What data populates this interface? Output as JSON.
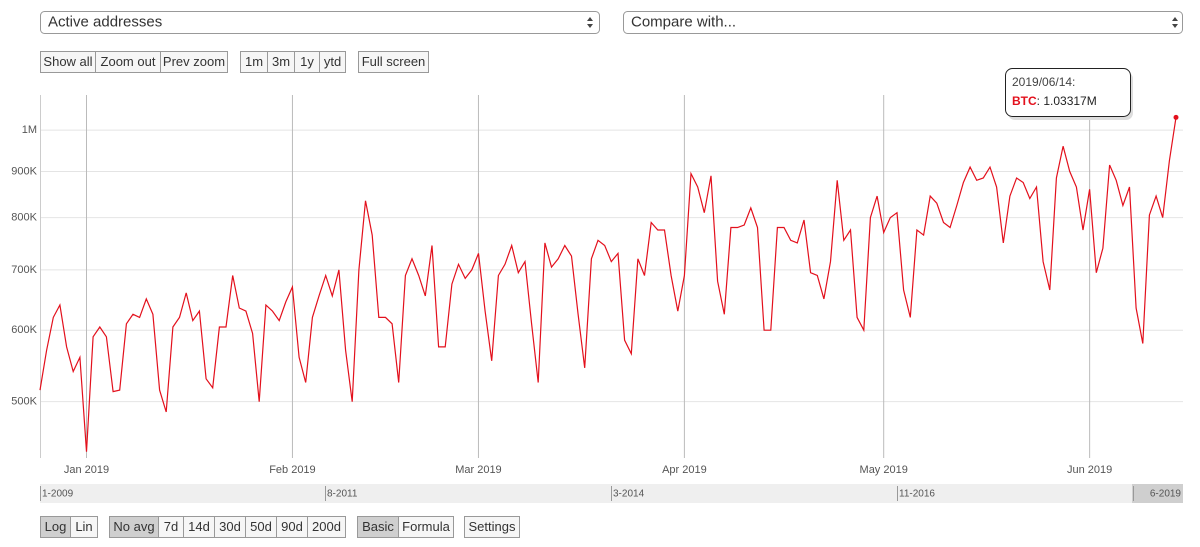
{
  "selects": [
    "Active addresses",
    "Compare with..."
  ],
  "zoom_buttons": [
    "Show all",
    "Zoom out",
    "Prev zoom"
  ],
  "range_buttons": [
    "1m",
    "3m",
    "1y",
    "ytd"
  ],
  "fullscreen_button": "Full screen",
  "scale_buttons": [
    "Log",
    "Lin"
  ],
  "scale_active": 0,
  "avg_buttons": [
    "No avg",
    "7d",
    "14d",
    "30d",
    "50d",
    "90d",
    "200d"
  ],
  "avg_active": 0,
  "mode_buttons": [
    "Basic",
    "Formula"
  ],
  "mode_active": 0,
  "settings_button": "Settings",
  "navigator": {
    "labels": [
      "1-2009",
      "8-2011",
      "3-2014",
      "11-2016",
      "6-2019"
    ]
  },
  "chart_data": {
    "type": "line",
    "log_scale": true,
    "grid": true,
    "categories": [
      null,
      null,
      null,
      null,
      null,
      null,
      null,
      "Jan 2019",
      null,
      null,
      null,
      null,
      null,
      null,
      null,
      null,
      null,
      null,
      null,
      null,
      null,
      null,
      null,
      null,
      null,
      null,
      null,
      null,
      null,
      null,
      null,
      null,
      null,
      null,
      null,
      null,
      null,
      null,
      "Feb 2019",
      null,
      null,
      null,
      null,
      null,
      null,
      null,
      null,
      null,
      null,
      null,
      null,
      null,
      null,
      null,
      null,
      null,
      null,
      null,
      null,
      null,
      null,
      null,
      null,
      null,
      null,
      null,
      "Mar 2019",
      null,
      null,
      null,
      null,
      null,
      null,
      null,
      null,
      null,
      null,
      null,
      null,
      null,
      null,
      null,
      null,
      null,
      null,
      null,
      null,
      null,
      null,
      null,
      null,
      null,
      null,
      null,
      null,
      null,
      null,
      "Apr 2019",
      null,
      null,
      null,
      null,
      null,
      null,
      null,
      null,
      null,
      null,
      null,
      null,
      null,
      null,
      null,
      null,
      null,
      null,
      null,
      null,
      null,
      null,
      null,
      null,
      null,
      null,
      null,
      null,
      null,
      "May 2019",
      null,
      null,
      null,
      null,
      null,
      null,
      null,
      null,
      null,
      null,
      null,
      null,
      null,
      null,
      null,
      null,
      null,
      null,
      null,
      null,
      null,
      null,
      null,
      null,
      null,
      null,
      null,
      null,
      null,
      null,
      "Jun 2019",
      null,
      null,
      null,
      null,
      null,
      null,
      null,
      null,
      null,
      null,
      null,
      null,
      null
    ],
    "series": [
      {
        "name": "BTC",
        "color": "#e3101c",
        "values": [
          515000,
          570000,
          620000,
          640000,
          575000,
          540000,
          560000,
          440000,
          590000,
          605000,
          590000,
          513000,
          515000,
          610000,
          625000,
          620000,
          650000,
          625000,
          515000,
          487000,
          605000,
          620000,
          660000,
          615000,
          630000,
          530000,
          518000,
          605000,
          605000,
          690000,
          635000,
          630000,
          595000,
          500000,
          640000,
          630000,
          615000,
          645000,
          670000,
          560000,
          525000,
          620000,
          655000,
          690000,
          655000,
          700000,
          570000,
          500000,
          700000,
          835000,
          765000,
          620000,
          620000,
          610000,
          525000,
          690000,
          720000,
          690000,
          655000,
          745000,
          575000,
          575000,
          675000,
          710000,
          685000,
          700000,
          730000,
          630000,
          555000,
          690000,
          710000,
          745000,
          695000,
          715000,
          610000,
          525000,
          750000,
          705000,
          720000,
          745000,
          725000,
          625000,
          545000,
          720000,
          755000,
          745000,
          715000,
          730000,
          585000,
          565000,
          720000,
          690000,
          790000,
          775000,
          775000,
          690000,
          630000,
          690000,
          895000,
          865000,
          810000,
          890000,
          680000,
          625000,
          780000,
          780000,
          785000,
          820000,
          780000,
          600000,
          600000,
          780000,
          780000,
          755000,
          750000,
          795000,
          695000,
          690000,
          650000,
          715000,
          880000,
          755000,
          775000,
          620000,
          600000,
          800000,
          845000,
          770000,
          800000,
          810000,
          665000,
          620000,
          775000,
          765000,
          845000,
          830000,
          790000,
          780000,
          825000,
          875000,
          910000,
          880000,
          885000,
          910000,
          865000,
          750000,
          845000,
          885000,
          875000,
          840000,
          865000,
          715000,
          665000,
          885000,
          960000,
          900000,
          865000,
          775000,
          860000,
          695000,
          740000,
          915000,
          880000,
          825000,
          865000,
          635000,
          580000,
          805000,
          845000,
          800000,
          925000,
          1033170
        ]
      }
    ],
    "ylim": [
      433000,
      1094000
    ],
    "yticks": [
      {
        "value": 500000,
        "label": "500K"
      },
      {
        "value": 600000,
        "label": "600K"
      },
      {
        "value": 700000,
        "label": "700K"
      },
      {
        "value": 800000,
        "label": "800K"
      },
      {
        "value": 900000,
        "label": "900K"
      },
      {
        "value": 1000000,
        "label": "1M"
      }
    ],
    "tooltip": {
      "date": "2019/06/14:",
      "value_label": ": 1.03317M"
    }
  }
}
